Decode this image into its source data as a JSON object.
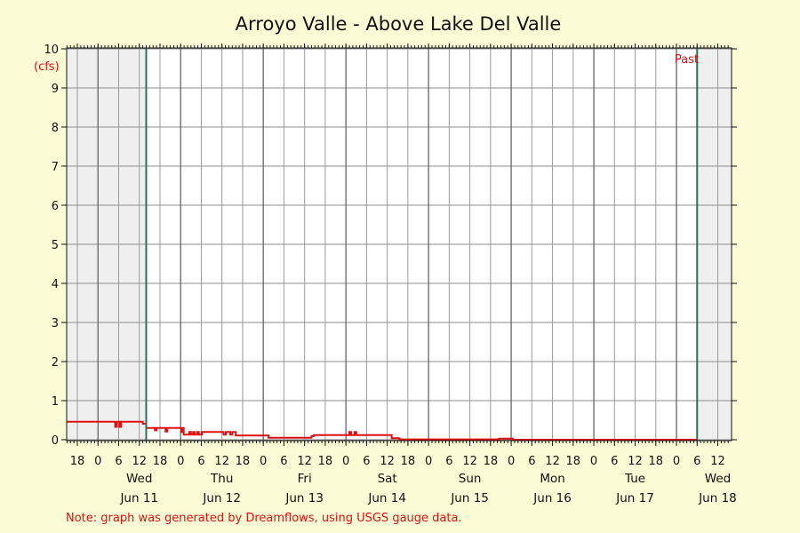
{
  "chart_data": {
    "type": "line",
    "title": "Arroyo Valle - Above Lake Del Valle",
    "ylabel": "(cfs)",
    "ylim": [
      0,
      10
    ],
    "yticks": [
      0,
      1,
      2,
      3,
      4,
      5,
      6,
      7,
      8,
      9,
      10
    ],
    "x_unit": "hours since Jun 11 00:00",
    "xlim": [
      -9.1,
      184
    ],
    "past_window_hours": [
      14,
      174
    ],
    "past_label": "Past",
    "hour_tick_labels": [
      "6",
      "12",
      "18",
      "0"
    ],
    "days": [
      {
        "weekday": "Wed",
        "date": "Jun 11"
      },
      {
        "weekday": "Thu",
        "date": "Jun 12"
      },
      {
        "weekday": "Fri",
        "date": "Jun 13"
      },
      {
        "weekday": "Sat",
        "date": "Jun 14"
      },
      {
        "weekday": "Sun",
        "date": "Jun 15"
      },
      {
        "weekday": "Mon",
        "date": "Jun 16"
      },
      {
        "weekday": "Tue",
        "date": "Jun 17"
      },
      {
        "weekday": "Wed",
        "date": "Jun 18"
      }
    ],
    "grid": true,
    "series": [
      {
        "color": "#e01010",
        "points": [
          [
            -9,
            0.46
          ],
          [
            5.0,
            0.46
          ],
          [
            5.0,
            0.33
          ],
          [
            5.5,
            0.33
          ],
          [
            5.5,
            0.46
          ],
          [
            6.2,
            0.46
          ],
          [
            6.2,
            0.33
          ],
          [
            6.7,
            0.33
          ],
          [
            6.7,
            0.46
          ],
          [
            13.0,
            0.46
          ],
          [
            13.0,
            0.41
          ],
          [
            14.0,
            0.41
          ],
          [
            14.0,
            0.3
          ],
          [
            16.5,
            0.3
          ],
          [
            16.5,
            0.24
          ],
          [
            17.0,
            0.24
          ],
          [
            17.0,
            0.3
          ],
          [
            19.6,
            0.3
          ],
          [
            19.6,
            0.21
          ],
          [
            20.1,
            0.21
          ],
          [
            20.1,
            0.3
          ],
          [
            24.2,
            0.3
          ],
          [
            24.2,
            0.2
          ],
          [
            24.7,
            0.2
          ],
          [
            24.7,
            0.3
          ],
          [
            24.9,
            0.3
          ],
          [
            24.9,
            0.13
          ],
          [
            26.5,
            0.13
          ],
          [
            26.5,
            0.2
          ],
          [
            27.0,
            0.2
          ],
          [
            27.0,
            0.13
          ],
          [
            27.6,
            0.13
          ],
          [
            27.6,
            0.2
          ],
          [
            28.1,
            0.2
          ],
          [
            28.1,
            0.13
          ],
          [
            28.8,
            0.13
          ],
          [
            28.8,
            0.2
          ],
          [
            29.3,
            0.2
          ],
          [
            29.3,
            0.13
          ],
          [
            30.2,
            0.13
          ],
          [
            30.2,
            0.2
          ],
          [
            36.5,
            0.2
          ],
          [
            36.5,
            0.13
          ],
          [
            37.1,
            0.13
          ],
          [
            37.1,
            0.2
          ],
          [
            38.4,
            0.2
          ],
          [
            38.4,
            0.13
          ],
          [
            39.0,
            0.13
          ],
          [
            39.0,
            0.2
          ],
          [
            40.0,
            0.2
          ],
          [
            40.0,
            0.11
          ],
          [
            49.5,
            0.11
          ],
          [
            49.5,
            0.05
          ],
          [
            62.0,
            0.05
          ],
          [
            62.0,
            0.09
          ],
          [
            62.7,
            0.09
          ],
          [
            62.7,
            0.12
          ],
          [
            73.0,
            0.12
          ],
          [
            73.0,
            0.2
          ],
          [
            73.5,
            0.2
          ],
          [
            73.5,
            0.12
          ],
          [
            74.5,
            0.12
          ],
          [
            74.5,
            0.2
          ],
          [
            75.0,
            0.2
          ],
          [
            75.0,
            0.12
          ],
          [
            85.3,
            0.12
          ],
          [
            85.3,
            0.04
          ],
          [
            87.5,
            0.04
          ],
          [
            87.5,
            0.01
          ],
          [
            116.5,
            0.01
          ],
          [
            116.5,
            0.03
          ],
          [
            120.5,
            0.03
          ],
          [
            120.5,
            0.0
          ],
          [
            174,
            0.0
          ]
        ]
      }
    ]
  },
  "footnote": "Note: graph was generated by Dreamflows, using USGS gauge data."
}
